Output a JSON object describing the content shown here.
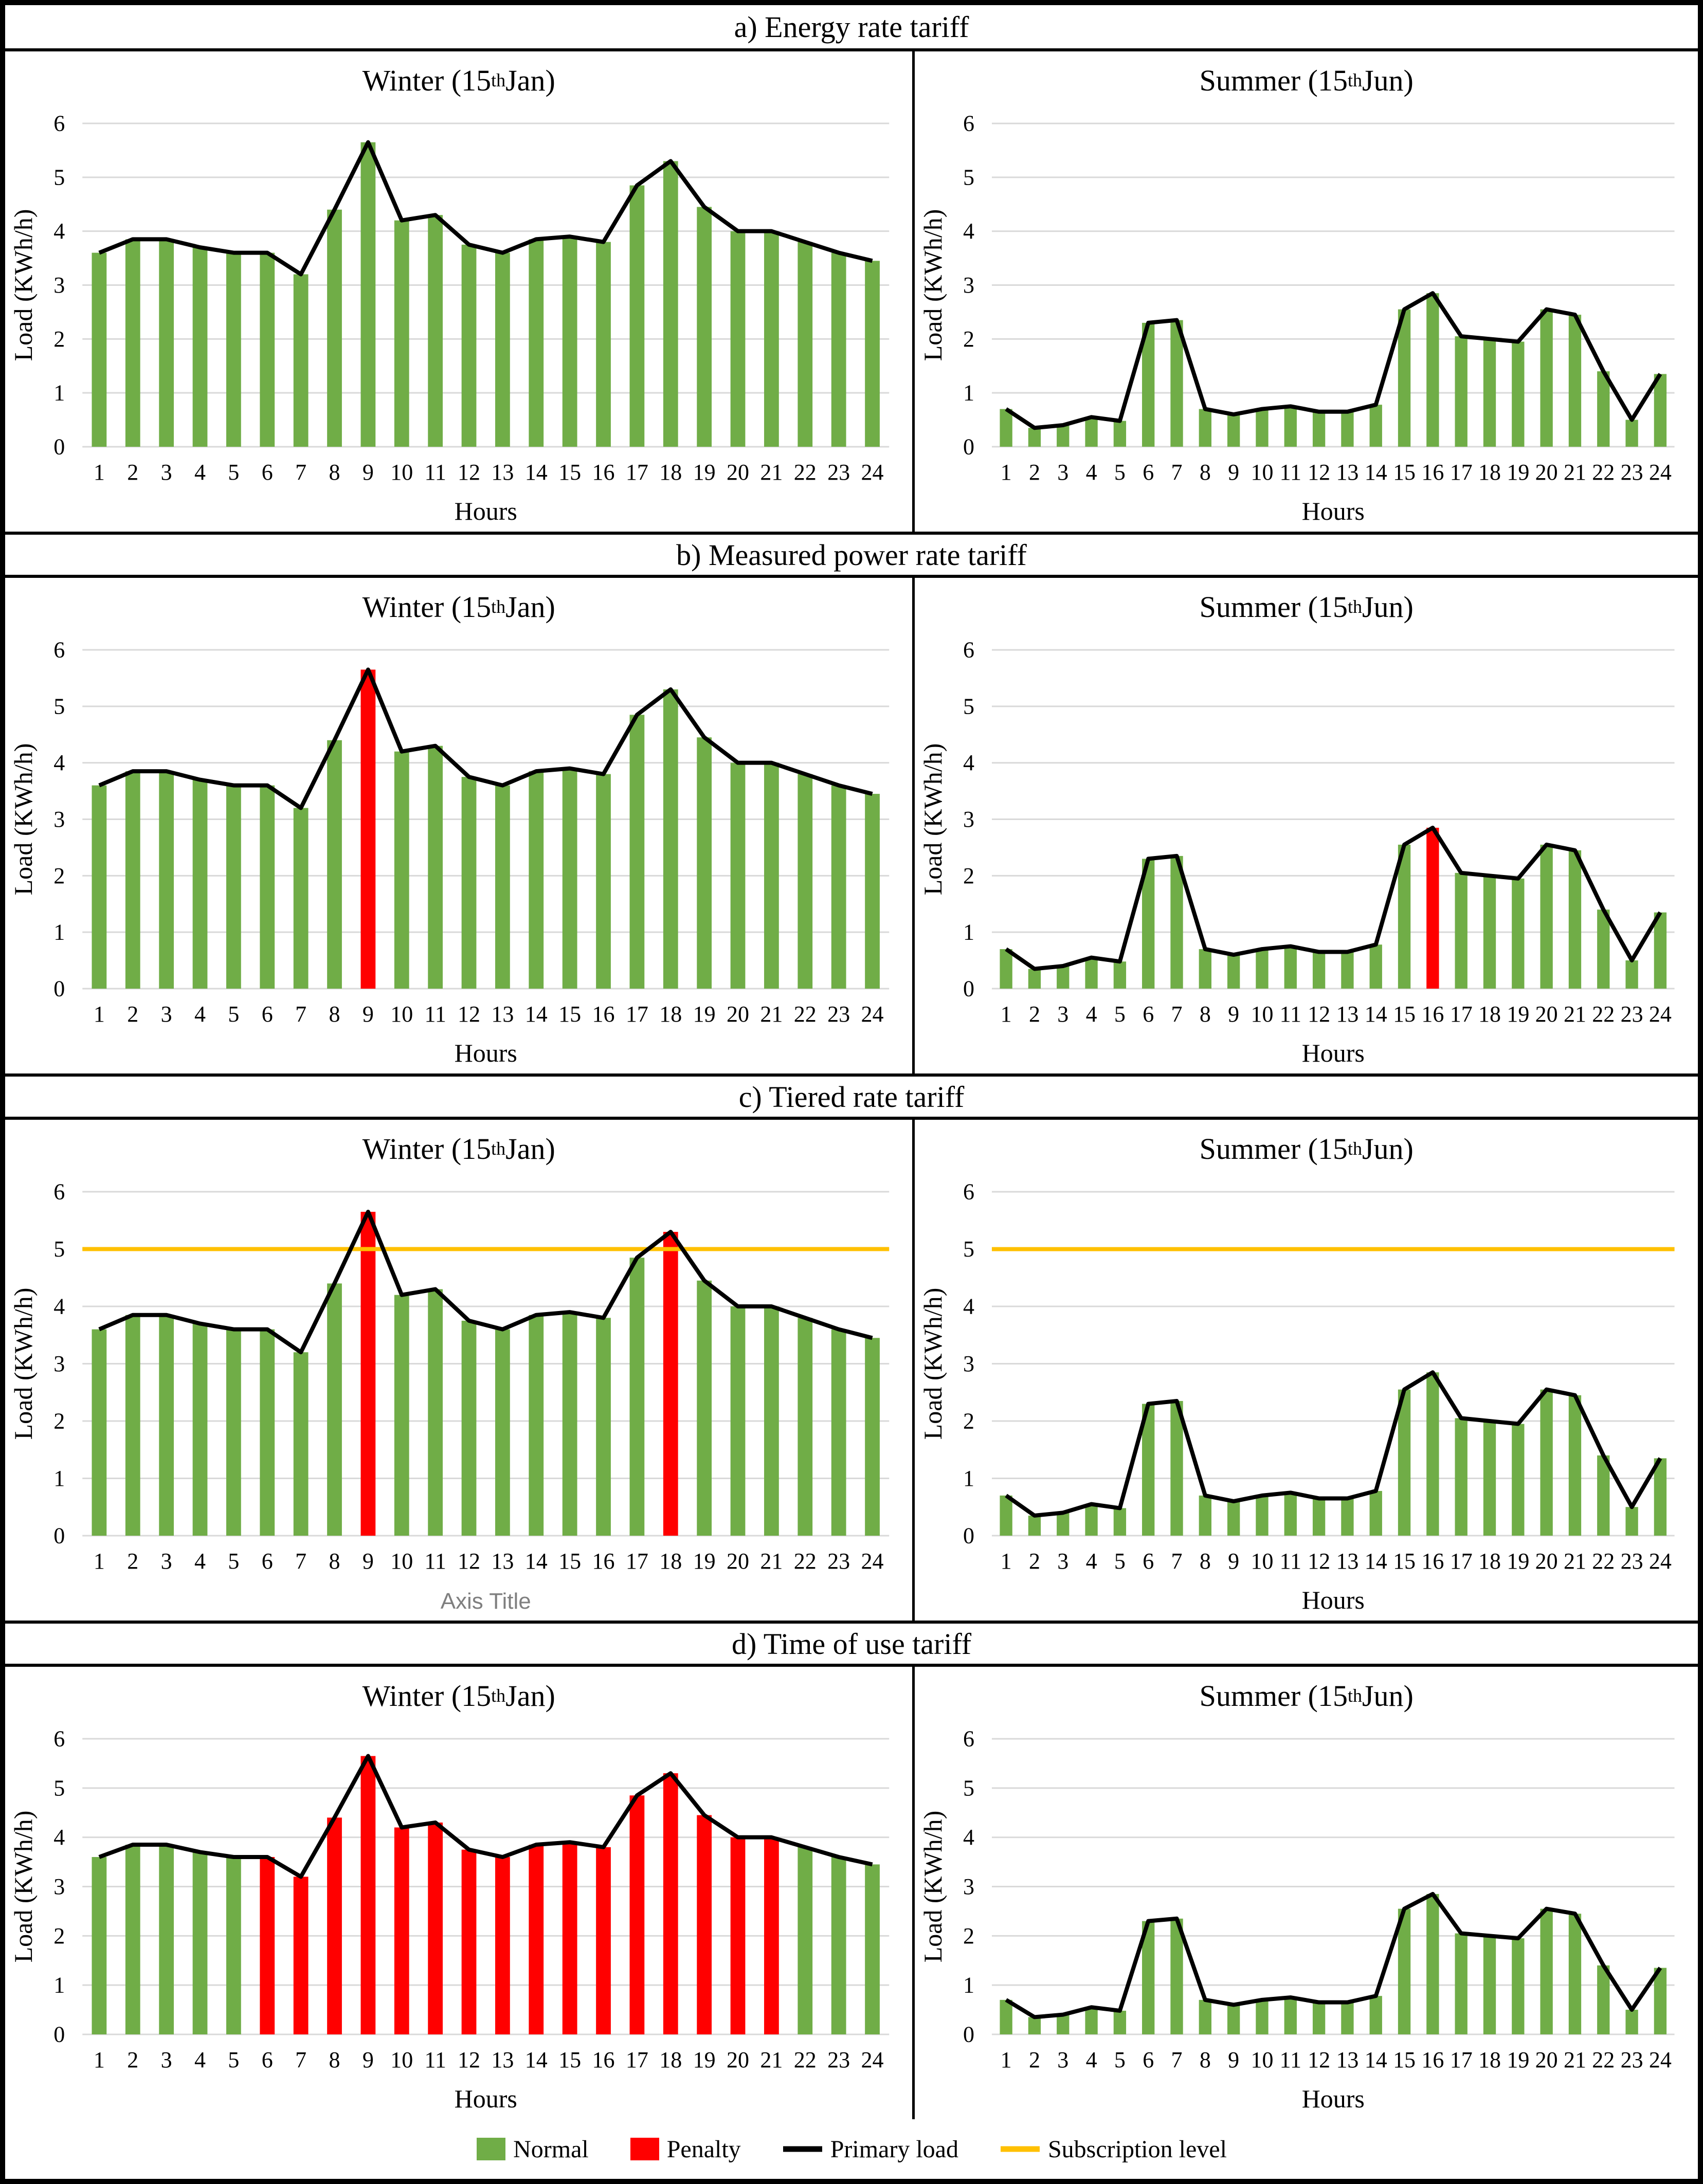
{
  "colors": {
    "normal": "#70AD47",
    "penalty": "#FF0000",
    "line": "#000000",
    "subscription": "#FFC000",
    "grid": "#D9D9D9",
    "axis_title_gray": "#7F7F7F"
  },
  "sections": [
    {
      "title": "a) Energy rate tariff"
    },
    {
      "title": "b) Measured power rate tariff"
    },
    {
      "title": "c) Tiered rate tariff"
    },
    {
      "title": "d) Time of use tariff"
    }
  ],
  "chart_data": {
    "type": "bar+line",
    "ylabel": "Load (KWh/h)",
    "xlabel": "Hours",
    "ylim": [
      0,
      6
    ],
    "yticks": [
      0,
      1,
      2,
      3,
      4,
      5,
      6
    ],
    "grid": true,
    "hours": [
      1,
      2,
      3,
      4,
      5,
      6,
      7,
      8,
      9,
      10,
      11,
      12,
      13,
      14,
      15,
      16,
      17,
      18,
      19,
      20,
      21,
      22,
      23,
      24
    ],
    "season_titles": {
      "winter": {
        "pre": "Winter (15",
        "sup": "th",
        "post": " Jan)"
      },
      "summer": {
        "pre": "Summer (15",
        "sup": "th",
        "post": " Jun)"
      }
    },
    "series": {
      "winter": [
        3.6,
        3.85,
        3.85,
        3.7,
        3.6,
        3.6,
        3.2,
        4.4,
        5.65,
        4.2,
        4.3,
        3.75,
        3.6,
        3.85,
        3.9,
        3.8,
        4.85,
        5.3,
        4.45,
        4.0,
        4.0,
        3.8,
        3.6,
        3.45
      ],
      "summer": [
        0.7,
        0.35,
        0.4,
        0.55,
        0.48,
        2.3,
        2.35,
        0.7,
        0.6,
        0.7,
        0.75,
        0.65,
        0.65,
        0.78,
        2.55,
        2.85,
        2.05,
        2.0,
        1.95,
        2.55,
        2.45,
        1.4,
        0.5,
        1.35
      ]
    },
    "panels": [
      {
        "section": "a) Energy rate tariff",
        "season": "winter",
        "penalty_hours": [],
        "subscription_level": null,
        "xlabel": "Hours",
        "xlabel_style": "normal"
      },
      {
        "section": "a) Energy rate tariff",
        "season": "summer",
        "penalty_hours": [],
        "subscription_level": null,
        "xlabel": "Hours",
        "xlabel_style": "normal"
      },
      {
        "section": "b) Measured power rate tariff",
        "season": "winter",
        "penalty_hours": [
          9
        ],
        "subscription_level": null,
        "xlabel": "Hours",
        "xlabel_style": "normal"
      },
      {
        "section": "b) Measured power rate tariff",
        "season": "summer",
        "penalty_hours": [
          16
        ],
        "subscription_level": null,
        "xlabel": "Hours",
        "xlabel_style": "normal"
      },
      {
        "section": "c) Tiered rate tariff",
        "season": "winter",
        "penalty_hours": [
          9,
          18
        ],
        "subscription_level": 5,
        "xlabel": "Axis Title",
        "xlabel_style": "gray"
      },
      {
        "section": "c) Tiered rate tariff",
        "season": "summer",
        "penalty_hours": [],
        "subscription_level": 5,
        "xlabel": "Hours",
        "xlabel_style": "normal"
      },
      {
        "section": "d) Time of use tariff",
        "season": "winter",
        "penalty_hours": [
          6,
          7,
          8,
          9,
          10,
          11,
          12,
          13,
          14,
          15,
          16,
          17,
          18,
          19,
          20,
          21
        ],
        "subscription_level": null,
        "xlabel": "Hours",
        "xlabel_style": "normal"
      },
      {
        "section": "d) Time of use tariff",
        "season": "summer",
        "penalty_hours": [],
        "subscription_level": null,
        "xlabel": "Hours",
        "xlabel_style": "normal"
      }
    ],
    "legend_items": [
      {
        "label": "Normal",
        "swatch": "box",
        "color_key": "normal"
      },
      {
        "label": "Penalty",
        "swatch": "box",
        "color_key": "penalty"
      },
      {
        "label": "Primary load",
        "swatch": "line",
        "color_key": "line"
      },
      {
        "label": "Subscription level",
        "swatch": "line",
        "color_key": "subscription"
      }
    ]
  }
}
